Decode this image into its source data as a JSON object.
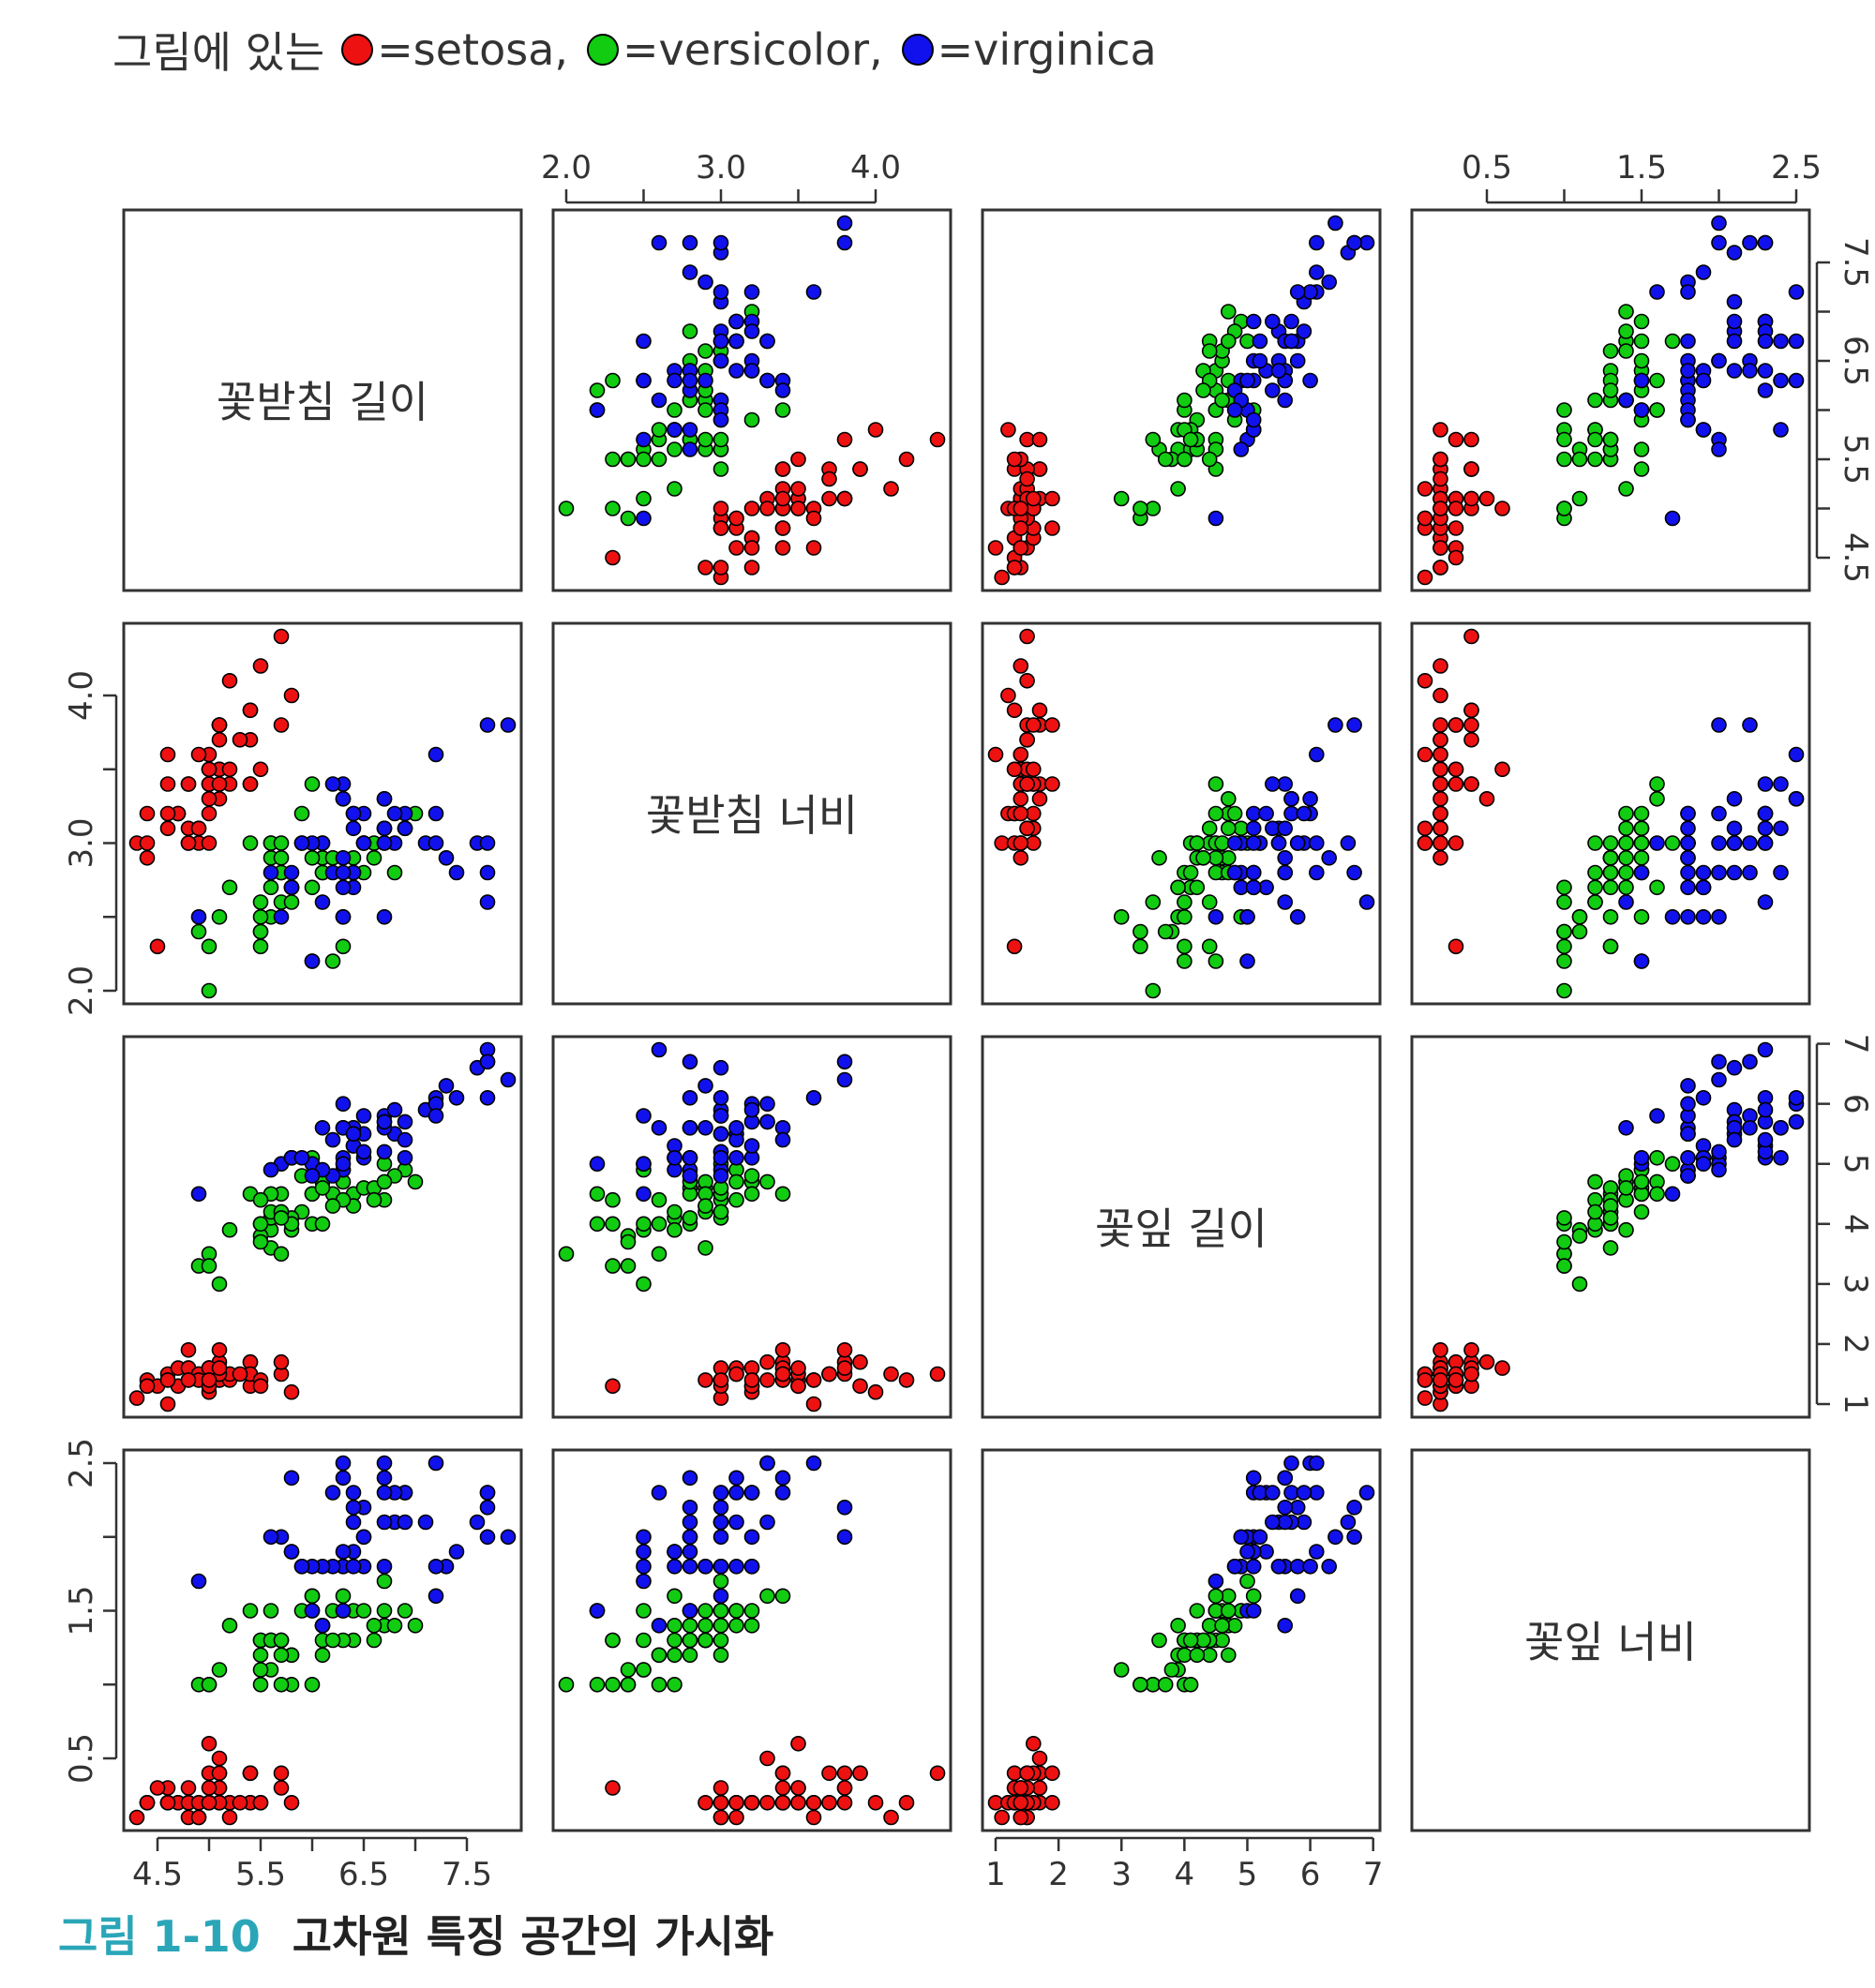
{
  "legend": {
    "prefix": "그림에 있는",
    "items": [
      {
        "label": "=setosa,",
        "color": "#ee1111"
      },
      {
        "label": "=versicolor,",
        "color": "#11cc11"
      },
      {
        "label": "=virginica",
        "color": "#1111ee"
      }
    ]
  },
  "caption": {
    "number": "그림 1-10",
    "text": "고차원 특징 공간의 가시화"
  },
  "chart_data": {
    "type": "scatter",
    "variables": [
      {
        "name": "꽃받침 길이",
        "range": [
          4.3,
          7.9
        ],
        "ticks": [
          "4.5",
          "5.5",
          "6.5",
          "7.5"
        ],
        "tick_values": [
          4.5,
          5.5,
          6.5,
          7.5
        ],
        "minor": [
          5.0,
          6.0,
          7.0
        ]
      },
      {
        "name": "꽃받침 너비",
        "range": [
          2.0,
          4.4
        ],
        "ticks": [
          "2.0",
          "3.0",
          "4.0"
        ],
        "tick_values": [
          2.0,
          3.0,
          4.0
        ],
        "minor": [
          2.5,
          3.5
        ]
      },
      {
        "name": "꽃잎 길이",
        "range": [
          1.0,
          6.9
        ],
        "ticks": [
          "1",
          "2",
          "3",
          "4",
          "5",
          "6",
          "7"
        ],
        "tick_values": [
          1,
          2,
          3,
          4,
          5,
          6,
          7
        ],
        "minor": []
      },
      {
        "name": "꽃잎 너비",
        "range": [
          0.1,
          2.5
        ],
        "ticks": [
          "0.5",
          "1.5",
          "2.5"
        ],
        "tick_values": [
          0.5,
          1.5,
          2.5
        ],
        "minor": [
          1.0,
          2.0
        ]
      }
    ],
    "series": [
      {
        "name": "setosa",
        "color": "#ee1111",
        "values": [
          [
            5.1,
            3.5,
            1.4,
            0.2
          ],
          [
            4.9,
            3.0,
            1.4,
            0.2
          ],
          [
            4.7,
            3.2,
            1.3,
            0.2
          ],
          [
            4.6,
            3.1,
            1.5,
            0.2
          ],
          [
            5.0,
            3.6,
            1.4,
            0.2
          ],
          [
            5.4,
            3.9,
            1.7,
            0.4
          ],
          [
            4.6,
            3.4,
            1.4,
            0.3
          ],
          [
            5.0,
            3.4,
            1.5,
            0.2
          ],
          [
            4.4,
            2.9,
            1.4,
            0.2
          ],
          [
            4.9,
            3.1,
            1.5,
            0.1
          ],
          [
            5.4,
            3.7,
            1.5,
            0.2
          ],
          [
            4.8,
            3.4,
            1.6,
            0.2
          ],
          [
            4.8,
            3.0,
            1.4,
            0.1
          ],
          [
            4.3,
            3.0,
            1.1,
            0.1
          ],
          [
            5.8,
            4.0,
            1.2,
            0.2
          ],
          [
            5.7,
            4.4,
            1.5,
            0.4
          ],
          [
            5.4,
            3.9,
            1.3,
            0.4
          ],
          [
            5.1,
            3.5,
            1.4,
            0.3
          ],
          [
            5.7,
            3.8,
            1.7,
            0.3
          ],
          [
            5.1,
            3.8,
            1.5,
            0.3
          ],
          [
            5.4,
            3.4,
            1.7,
            0.2
          ],
          [
            5.1,
            3.7,
            1.5,
            0.4
          ],
          [
            4.6,
            3.6,
            1.0,
            0.2
          ],
          [
            5.1,
            3.3,
            1.7,
            0.5
          ],
          [
            4.8,
            3.4,
            1.9,
            0.2
          ],
          [
            5.0,
            3.0,
            1.6,
            0.2
          ],
          [
            5.0,
            3.4,
            1.6,
            0.4
          ],
          [
            5.2,
            3.5,
            1.5,
            0.2
          ],
          [
            5.2,
            3.4,
            1.4,
            0.2
          ],
          [
            4.7,
            3.2,
            1.6,
            0.2
          ],
          [
            4.8,
            3.1,
            1.6,
            0.2
          ],
          [
            5.4,
            3.4,
            1.5,
            0.4
          ],
          [
            5.2,
            4.1,
            1.5,
            0.1
          ],
          [
            5.5,
            4.2,
            1.4,
            0.2
          ],
          [
            4.9,
            3.1,
            1.5,
            0.2
          ],
          [
            5.0,
            3.2,
            1.2,
            0.2
          ],
          [
            5.5,
            3.5,
            1.3,
            0.2
          ],
          [
            4.9,
            3.6,
            1.4,
            0.1
          ],
          [
            4.4,
            3.0,
            1.3,
            0.2
          ],
          [
            5.1,
            3.4,
            1.5,
            0.2
          ],
          [
            5.0,
            3.5,
            1.3,
            0.3
          ],
          [
            4.5,
            2.3,
            1.3,
            0.3
          ],
          [
            4.4,
            3.2,
            1.3,
            0.2
          ],
          [
            5.0,
            3.5,
            1.6,
            0.6
          ],
          [
            5.1,
            3.8,
            1.9,
            0.4
          ],
          [
            4.8,
            3.0,
            1.4,
            0.3
          ],
          [
            5.1,
            3.8,
            1.6,
            0.2
          ],
          [
            4.6,
            3.2,
            1.4,
            0.2
          ],
          [
            5.3,
            3.7,
            1.5,
            0.2
          ],
          [
            5.0,
            3.3,
            1.4,
            0.2
          ]
        ]
      },
      {
        "name": "versicolor",
        "color": "#11cc11",
        "values": [
          [
            7.0,
            3.2,
            4.7,
            1.4
          ],
          [
            6.4,
            3.2,
            4.5,
            1.5
          ],
          [
            6.9,
            3.1,
            4.9,
            1.5
          ],
          [
            5.5,
            2.3,
            4.0,
            1.3
          ],
          [
            6.5,
            2.8,
            4.6,
            1.5
          ],
          [
            5.7,
            2.8,
            4.5,
            1.3
          ],
          [
            6.3,
            3.3,
            4.7,
            1.6
          ],
          [
            4.9,
            2.4,
            3.3,
            1.0
          ],
          [
            6.6,
            2.9,
            4.6,
            1.3
          ],
          [
            5.2,
            2.7,
            3.9,
            1.4
          ],
          [
            5.0,
            2.0,
            3.5,
            1.0
          ],
          [
            5.9,
            3.0,
            4.2,
            1.5
          ],
          [
            6.0,
            2.2,
            4.0,
            1.0
          ],
          [
            6.1,
            2.9,
            4.7,
            1.4
          ],
          [
            5.6,
            2.9,
            3.6,
            1.3
          ],
          [
            6.7,
            3.1,
            4.4,
            1.4
          ],
          [
            5.6,
            3.0,
            4.5,
            1.5
          ],
          [
            5.8,
            2.7,
            4.1,
            1.0
          ],
          [
            6.2,
            2.2,
            4.5,
            1.5
          ],
          [
            5.6,
            2.5,
            3.9,
            1.1
          ],
          [
            5.9,
            3.2,
            4.8,
            1.8
          ],
          [
            6.1,
            2.8,
            4.0,
            1.3
          ],
          [
            6.3,
            2.5,
            4.9,
            1.5
          ],
          [
            6.1,
            2.8,
            4.7,
            1.2
          ],
          [
            6.4,
            2.9,
            4.3,
            1.3
          ],
          [
            6.6,
            3.0,
            4.4,
            1.4
          ],
          [
            6.8,
            2.8,
            4.8,
            1.4
          ],
          [
            6.7,
            3.0,
            5.0,
            1.7
          ],
          [
            6.0,
            2.9,
            4.5,
            1.5
          ],
          [
            5.7,
            2.6,
            3.5,
            1.0
          ],
          [
            5.5,
            2.4,
            3.8,
            1.1
          ],
          [
            5.5,
            2.4,
            3.7,
            1.0
          ],
          [
            5.8,
            2.7,
            3.9,
            1.2
          ],
          [
            6.0,
            2.7,
            5.1,
            1.6
          ],
          [
            5.4,
            3.0,
            4.5,
            1.5
          ],
          [
            6.0,
            3.4,
            4.5,
            1.6
          ],
          [
            6.7,
            3.1,
            4.7,
            1.5
          ],
          [
            6.3,
            2.3,
            4.4,
            1.3
          ],
          [
            5.6,
            3.0,
            4.1,
            1.3
          ],
          [
            5.5,
            2.5,
            4.0,
            1.3
          ],
          [
            5.5,
            2.6,
            4.4,
            1.2
          ],
          [
            6.1,
            3.0,
            4.6,
            1.4
          ],
          [
            5.8,
            2.6,
            4.0,
            1.2
          ],
          [
            5.0,
            2.3,
            3.3,
            1.0
          ],
          [
            5.6,
            2.7,
            4.2,
            1.3
          ],
          [
            5.7,
            3.0,
            4.2,
            1.2
          ],
          [
            5.7,
            2.9,
            4.2,
            1.3
          ],
          [
            6.2,
            2.9,
            4.3,
            1.3
          ],
          [
            5.1,
            2.5,
            3.0,
            1.1
          ],
          [
            5.7,
            2.8,
            4.1,
            1.3
          ]
        ]
      },
      {
        "name": "virginica",
        "color": "#1111ee",
        "values": [
          [
            6.3,
            3.3,
            6.0,
            2.5
          ],
          [
            5.8,
            2.7,
            5.1,
            1.9
          ],
          [
            7.1,
            3.0,
            5.9,
            2.1
          ],
          [
            6.3,
            2.9,
            5.6,
            1.8
          ],
          [
            6.5,
            3.0,
            5.8,
            2.2
          ],
          [
            7.6,
            3.0,
            6.6,
            2.1
          ],
          [
            4.9,
            2.5,
            4.5,
            1.7
          ],
          [
            7.3,
            2.9,
            6.3,
            1.8
          ],
          [
            6.7,
            2.5,
            5.8,
            1.8
          ],
          [
            7.2,
            3.6,
            6.1,
            2.5
          ],
          [
            6.5,
            3.2,
            5.1,
            2.0
          ],
          [
            6.4,
            2.7,
            5.3,
            1.9
          ],
          [
            6.8,
            3.0,
            5.5,
            2.1
          ],
          [
            5.7,
            2.5,
            5.0,
            2.0
          ],
          [
            5.8,
            2.8,
            5.1,
            2.4
          ],
          [
            6.4,
            3.2,
            5.3,
            2.3
          ],
          [
            6.5,
            3.0,
            5.5,
            1.8
          ],
          [
            7.7,
            3.8,
            6.7,
            2.2
          ],
          [
            7.7,
            2.6,
            6.9,
            2.3
          ],
          [
            6.0,
            2.2,
            5.0,
            1.5
          ],
          [
            6.9,
            3.2,
            5.7,
            2.3
          ],
          [
            5.6,
            2.8,
            4.9,
            2.0
          ],
          [
            7.7,
            2.8,
            6.7,
            2.0
          ],
          [
            6.3,
            2.7,
            4.9,
            1.8
          ],
          [
            6.7,
            3.3,
            5.7,
            2.1
          ],
          [
            7.2,
            3.2,
            6.0,
            1.8
          ],
          [
            6.2,
            2.8,
            4.8,
            1.8
          ],
          [
            6.1,
            3.0,
            4.9,
            1.8
          ],
          [
            6.4,
            2.8,
            5.6,
            2.1
          ],
          [
            7.2,
            3.0,
            5.8,
            1.6
          ],
          [
            7.4,
            2.8,
            6.1,
            1.9
          ],
          [
            7.9,
            3.8,
            6.4,
            2.0
          ],
          [
            6.4,
            2.8,
            5.6,
            2.2
          ],
          [
            6.3,
            2.8,
            5.1,
            1.5
          ],
          [
            6.1,
            2.6,
            5.6,
            1.4
          ],
          [
            7.7,
            3.0,
            6.1,
            2.3
          ],
          [
            6.3,
            3.4,
            5.6,
            2.4
          ],
          [
            6.4,
            3.1,
            5.5,
            1.8
          ],
          [
            6.0,
            3.0,
            4.8,
            1.8
          ],
          [
            6.9,
            3.1,
            5.4,
            2.1
          ],
          [
            6.7,
            3.1,
            5.6,
            2.4
          ],
          [
            6.9,
            3.1,
            5.1,
            2.3
          ],
          [
            5.8,
            2.7,
            5.1,
            1.9
          ],
          [
            6.8,
            3.2,
            5.9,
            2.3
          ],
          [
            6.7,
            3.3,
            5.7,
            2.5
          ],
          [
            6.7,
            3.0,
            5.2,
            2.3
          ],
          [
            6.3,
            2.5,
            5.0,
            1.9
          ],
          [
            6.5,
            3.0,
            5.2,
            2.0
          ],
          [
            6.2,
            3.4,
            5.4,
            2.3
          ],
          [
            5.9,
            3.0,
            5.1,
            1.8
          ]
        ]
      }
    ]
  }
}
